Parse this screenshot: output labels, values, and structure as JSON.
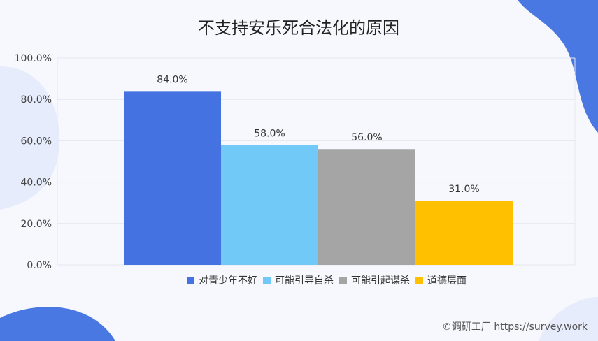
{
  "chart_data": {
    "type": "bar",
    "title": "不支持安乐死合法化的原因",
    "ylim": [
      0,
      100
    ],
    "yticks": [
      0,
      20,
      40,
      60,
      80,
      100
    ],
    "ytick_labels": [
      "0.0%",
      "20.0%",
      "40.0%",
      "60.0%",
      "80.0%",
      "100.0%"
    ],
    "grid": true,
    "legend_position": "bottom",
    "series": [
      {
        "name": "对青少年不好",
        "value": 84.0,
        "label": "84.0%",
        "color": "#4472e0"
      },
      {
        "name": "可能引导自杀",
        "value": 58.0,
        "label": "58.0%",
        "color": "#70c9f7"
      },
      {
        "name": "可能引起谋杀",
        "value": 56.0,
        "label": "56.0%",
        "color": "#a5a5a5"
      },
      {
        "name": "道德层面",
        "value": 31.0,
        "label": "31.0%",
        "color": "#ffc000"
      }
    ]
  },
  "footer": "©调研工厂 https://survey.work"
}
